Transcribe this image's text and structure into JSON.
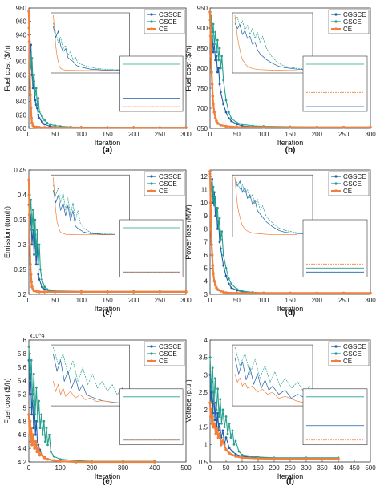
{
  "colors": {
    "CGSCE": "#1f5fa8",
    "GSCE": "#25a08c",
    "CE": "#f0803c",
    "axis": "#333333",
    "inset_bg": "#ffffff"
  },
  "legend_labels": [
    "CGSCE",
    "GSCE",
    "CE"
  ],
  "chart_data": [
    {
      "type": "line",
      "panel_label": "(a)",
      "ylabel": "Fuel cost ($/h)",
      "xlabel": "Iteration",
      "xlim": [
        0,
        300
      ],
      "ylim": [
        800,
        980
      ],
      "xticks": [
        0,
        50,
        100,
        150,
        200,
        250,
        300
      ],
      "yticks": [
        800,
        820,
        840,
        860,
        880,
        900,
        920,
        940,
        960,
        980
      ],
      "legend_position": "top-right",
      "series": [
        {
          "name": "CGSCE",
          "x": [
            0,
            2,
            4,
            6,
            8,
            10,
            12,
            14,
            16,
            18,
            20,
            25,
            30,
            40,
            50,
            60,
            80,
            100,
            150,
            200,
            250,
            300
          ],
          "y": [
            940,
            905,
            925,
            880,
            860,
            870,
            842,
            835,
            830,
            820,
            815,
            810,
            806,
            803,
            802,
            801.5,
            801.3,
            801.2,
            801.1,
            801.1,
            801.1,
            801.1
          ]
        },
        {
          "name": "GSCE",
          "x": [
            0,
            2,
            4,
            6,
            8,
            10,
            12,
            14,
            16,
            18,
            20,
            25,
            30,
            35,
            40,
            50,
            60,
            80,
            100,
            150,
            200,
            250,
            300
          ],
          "y": [
            950,
            920,
            890,
            905,
            870,
            880,
            850,
            860,
            835,
            845,
            825,
            818,
            812,
            808,
            806,
            804,
            803,
            802,
            801.8,
            801.6,
            801.5,
            801.5,
            801.5
          ]
        },
        {
          "name": "CE",
          "x": [
            0,
            1,
            2,
            3,
            4,
            5,
            6,
            8,
            10,
            15,
            20,
            30,
            50,
            100,
            150,
            200,
            250,
            300
          ],
          "y": [
            975,
            930,
            880,
            850,
            830,
            815,
            808,
            804,
            802.5,
            801.8,
            801.4,
            801.2,
            801.1,
            801,
            801,
            801,
            801,
            801
          ]
        }
      ]
    },
    {
      "type": "line",
      "panel_label": "(b)",
      "ylabel": "Fuel cost ($/h)",
      "xlabel": "Iteration",
      "xlim": [
        0,
        300
      ],
      "ylim": [
        650,
        950
      ],
      "xticks": [
        0,
        50,
        100,
        150,
        200,
        250,
        300
      ],
      "yticks": [
        650,
        700,
        750,
        800,
        850,
        900,
        950
      ],
      "legend_position": "top-right",
      "series": [
        {
          "name": "CGSCE",
          "x": [
            0,
            2,
            4,
            6,
            8,
            10,
            12,
            14,
            16,
            18,
            20,
            25,
            30,
            35,
            40,
            50,
            60,
            80,
            100,
            150,
            200,
            250,
            300
          ],
          "y": [
            900,
            870,
            890,
            840,
            860,
            820,
            830,
            790,
            800,
            760,
            740,
            710,
            690,
            675,
            668,
            660,
            656,
            654,
            653,
            652,
            652,
            652,
            652
          ]
        },
        {
          "name": "GSCE",
          "x": [
            0,
            2,
            4,
            6,
            8,
            10,
            12,
            14,
            16,
            18,
            20,
            22,
            25,
            30,
            35,
            40,
            50,
            60,
            80,
            100,
            150,
            200,
            250,
            300
          ],
          "y": [
            920,
            930,
            880,
            910,
            860,
            890,
            840,
            870,
            820,
            850,
            800,
            830,
            770,
            720,
            690,
            675,
            664,
            660,
            656,
            655,
            654,
            653.5,
            653.5,
            653.5
          ]
        },
        {
          "name": "CE",
          "x": [
            0,
            1,
            2,
            3,
            4,
            5,
            6,
            8,
            10,
            12,
            15,
            20,
            30,
            50,
            100,
            150,
            200,
            250,
            300
          ],
          "y": [
            940,
            880,
            830,
            790,
            760,
            730,
            710,
            690,
            675,
            668,
            662,
            658,
            655,
            653,
            652.5,
            652.5,
            652.5,
            652.5,
            652.5
          ]
        }
      ]
    },
    {
      "type": "line",
      "panel_label": "(c)",
      "ylabel": "Emission (ton/h)",
      "xlabel": "Iteration",
      "xlim": [
        0,
        300
      ],
      "ylim": [
        0.2,
        0.45
      ],
      "xticks": [
        0,
        50,
        100,
        150,
        200,
        250,
        300
      ],
      "yticks": [
        0.2,
        0.25,
        0.3,
        0.35,
        0.4,
        0.45
      ],
      "legend_position": "top-right",
      "series": [
        {
          "name": "CGSCE",
          "x": [
            0,
            2,
            4,
            6,
            8,
            10,
            12,
            14,
            16,
            18,
            20,
            25,
            30,
            40,
            50,
            100,
            150,
            200,
            250,
            300
          ],
          "y": [
            0.38,
            0.33,
            0.36,
            0.3,
            0.33,
            0.28,
            0.32,
            0.26,
            0.3,
            0.24,
            0.23,
            0.215,
            0.21,
            0.207,
            0.206,
            0.205,
            0.205,
            0.205,
            0.205,
            0.205
          ]
        },
        {
          "name": "GSCE",
          "x": [
            0,
            2,
            4,
            6,
            8,
            10,
            12,
            14,
            16,
            18,
            20,
            22,
            25,
            30,
            35,
            40,
            50,
            100,
            150,
            200,
            250,
            300
          ],
          "y": [
            0.4,
            0.36,
            0.39,
            0.33,
            0.37,
            0.3,
            0.35,
            0.28,
            0.33,
            0.26,
            0.3,
            0.25,
            0.23,
            0.215,
            0.21,
            0.208,
            0.207,
            0.206,
            0.206,
            0.206,
            0.206,
            0.206
          ]
        },
        {
          "name": "CE",
          "x": [
            0,
            1,
            2,
            3,
            4,
            5,
            6,
            8,
            10,
            15,
            20,
            30,
            50,
            100,
            150,
            200,
            250,
            300
          ],
          "y": [
            0.43,
            0.36,
            0.3,
            0.26,
            0.24,
            0.225,
            0.215,
            0.21,
            0.207,
            0.206,
            0.205,
            0.205,
            0.205,
            0.205,
            0.205,
            0.205,
            0.205,
            0.205
          ]
        }
      ]
    },
    {
      "type": "line",
      "panel_label": "(d)",
      "ylabel": "Power loss (MW)",
      "xlabel": "Iteration",
      "xlim": [
        0,
        300
      ],
      "ylim": [
        3,
        12.5
      ],
      "xticks": [
        0,
        50,
        100,
        150,
        200,
        250,
        300
      ],
      "yticks": [
        3,
        4,
        5,
        6,
        7,
        8,
        9,
        10,
        11,
        12
      ],
      "legend_position": "top-right",
      "series": [
        {
          "name": "CGSCE",
          "x": [
            0,
            2,
            4,
            6,
            8,
            10,
            12,
            14,
            16,
            18,
            20,
            25,
            30,
            35,
            40,
            50,
            60,
            80,
            100,
            150,
            200,
            250,
            300
          ],
          "y": [
            12.2,
            11.0,
            11.8,
            10.0,
            10.8,
            9.0,
            9.6,
            8.0,
            8.6,
            7.0,
            6.5,
            5.2,
            4.4,
            3.8,
            3.5,
            3.3,
            3.2,
            3.15,
            3.1,
            3.1,
            3.1,
            3.1,
            3.1
          ]
        },
        {
          "name": "GSCE",
          "x": [
            0,
            2,
            4,
            6,
            8,
            10,
            12,
            14,
            16,
            18,
            20,
            22,
            25,
            30,
            35,
            40,
            50,
            60,
            80,
            100,
            150,
            200,
            250,
            300
          ],
          "y": [
            12.0,
            11.5,
            10.5,
            11.2,
            9.8,
            10.4,
            9.0,
            9.6,
            8.0,
            8.8,
            7.2,
            7.8,
            6.0,
            5.0,
            4.2,
            3.8,
            3.4,
            3.25,
            3.15,
            3.12,
            3.1,
            3.1,
            3.1,
            3.1
          ]
        },
        {
          "name": "CE",
          "x": [
            0,
            1,
            2,
            3,
            4,
            5,
            6,
            8,
            10,
            12,
            15,
            20,
            25,
            30,
            50,
            100,
            150,
            200,
            250,
            300
          ],
          "y": [
            12.4,
            10.0,
            8.0,
            6.8,
            6.0,
            5.2,
            4.6,
            4.0,
            3.7,
            3.5,
            3.35,
            3.25,
            3.18,
            3.12,
            3.1,
            3.1,
            3.1,
            3.1,
            3.1,
            3.1
          ]
        }
      ]
    },
    {
      "type": "line",
      "panel_label": "(e)",
      "ylabel": "Fuel cost ($/h)",
      "xlabel": "Iteration",
      "exponent_label": "x10^4",
      "xlim": [
        0,
        500
      ],
      "ylim": [
        4.2,
        6.0
      ],
      "xticks": [
        0,
        100,
        200,
        300,
        400,
        500
      ],
      "yticks": [
        4.2,
        4.4,
        4.6,
        4.8,
        5.0,
        5.2,
        5.4,
        5.6,
        5.8,
        6.0
      ],
      "legend_position": "top-right",
      "series": [
        {
          "name": "CGSCE",
          "x": [
            0,
            3,
            6,
            9,
            12,
            15,
            18,
            21,
            24,
            27,
            30,
            35,
            40,
            50,
            60,
            80,
            100,
            150,
            200,
            300,
            400
          ],
          "y": [
            5.7,
            5.2,
            5.5,
            4.9,
            5.2,
            4.7,
            5.0,
            4.6,
            4.8,
            4.5,
            4.45,
            4.38,
            4.32,
            4.27,
            4.24,
            4.22,
            4.21,
            4.2,
            4.2,
            4.2,
            4.2
          ]
        },
        {
          "name": "GSCE",
          "x": [
            0,
            4,
            8,
            12,
            16,
            20,
            24,
            28,
            32,
            36,
            40,
            44,
            48,
            52,
            56,
            60,
            65,
            70,
            80,
            100,
            150,
            200,
            300,
            400
          ],
          "y": [
            5.9,
            5.4,
            5.7,
            5.1,
            5.5,
            4.9,
            5.3,
            4.8,
            5.1,
            4.7,
            4.9,
            4.6,
            4.8,
            4.5,
            4.7,
            4.45,
            4.6,
            4.35,
            4.28,
            4.24,
            4.22,
            4.21,
            4.21,
            4.21
          ]
        },
        {
          "name": "CE",
          "x": [
            0,
            2,
            4,
            6,
            8,
            10,
            14,
            18,
            22,
            26,
            30,
            35,
            40,
            50,
            60,
            80,
            100,
            150,
            200,
            300,
            400
          ],
          "y": [
            4.9,
            4.6,
            4.8,
            4.5,
            4.7,
            4.45,
            4.6,
            4.4,
            4.5,
            4.35,
            4.4,
            4.3,
            4.32,
            4.26,
            4.24,
            4.22,
            4.21,
            4.2,
            4.2,
            4.2,
            4.2
          ]
        }
      ]
    },
    {
      "type": "line",
      "panel_label": "(f)",
      "ylabel": "Voltage (p.u.)",
      "xlabel": "Iteration",
      "xlim": [
        0,
        500
      ],
      "ylim": [
        0.5,
        4
      ],
      "xticks": [
        0,
        50,
        100,
        150,
        200,
        250,
        300,
        350,
        400,
        450,
        500
      ],
      "yticks": [
        0.5,
        1,
        1.5,
        2,
        2.5,
        3,
        3.5,
        4
      ],
      "legend_position": "top-right",
      "series": [
        {
          "name": "CGSCE",
          "x": [
            0,
            3,
            6,
            9,
            12,
            15,
            18,
            21,
            24,
            27,
            30,
            35,
            40,
            45,
            50,
            60,
            70,
            80,
            100,
            150,
            200,
            300,
            400
          ],
          "y": [
            3.0,
            2.2,
            2.8,
            1.9,
            2.5,
            1.7,
            2.2,
            1.5,
            1.9,
            1.4,
            1.6,
            1.2,
            1.4,
            1.0,
            1.2,
            0.9,
            0.8,
            0.72,
            0.66,
            0.62,
            0.6,
            0.6,
            0.6
          ]
        },
        {
          "name": "GSCE",
          "x": [
            0,
            4,
            8,
            12,
            16,
            20,
            24,
            28,
            32,
            36,
            40,
            45,
            50,
            55,
            60,
            65,
            70,
            75,
            80,
            90,
            100,
            150,
            200,
            300,
            400
          ],
          "y": [
            3.5,
            2.6,
            3.2,
            2.2,
            2.9,
            2.0,
            2.6,
            1.8,
            2.3,
            1.6,
            2.0,
            1.5,
            1.8,
            1.3,
            1.6,
            1.2,
            1.4,
            1.0,
            1.1,
            0.8,
            0.7,
            0.64,
            0.62,
            0.62,
            0.62
          ]
        },
        {
          "name": "CE",
          "x": [
            0,
            2,
            4,
            6,
            8,
            10,
            14,
            18,
            22,
            26,
            30,
            35,
            40,
            50,
            60,
            80,
            100,
            150,
            200,
            300,
            400
          ],
          "y": [
            2.2,
            1.8,
            2.0,
            1.6,
            1.8,
            1.5,
            1.6,
            1.3,
            1.45,
            1.2,
            1.3,
            1.0,
            1.1,
            0.85,
            0.75,
            0.66,
            0.62,
            0.6,
            0.59,
            0.59,
            0.59
          ]
        }
      ]
    }
  ]
}
